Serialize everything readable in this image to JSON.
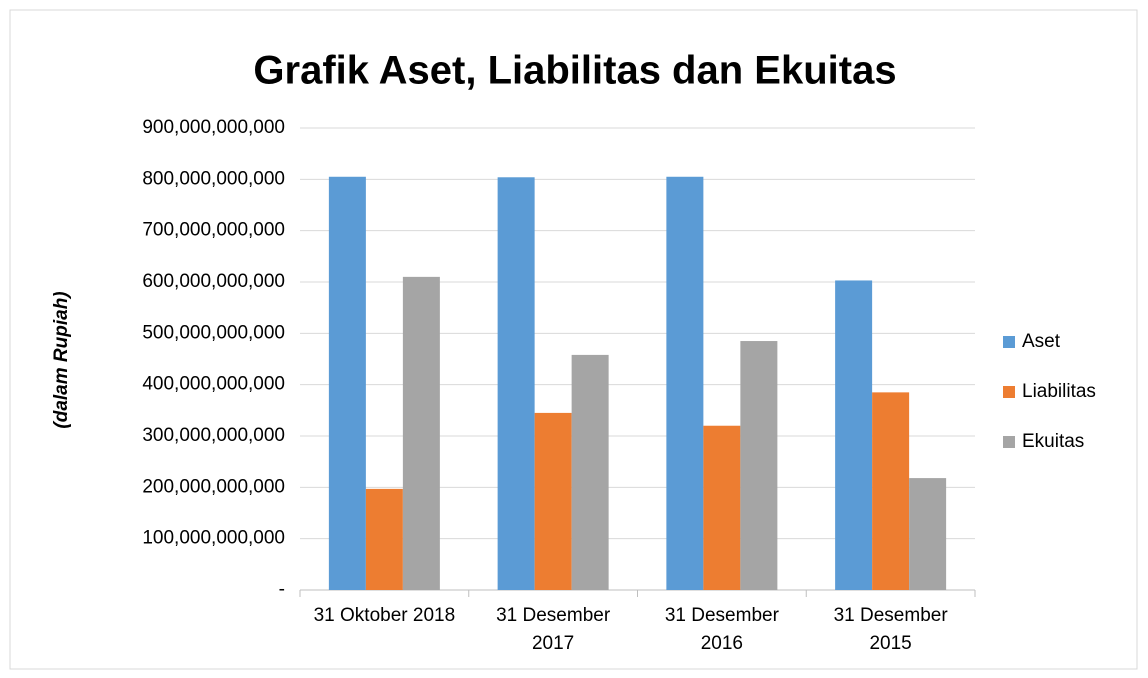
{
  "chart_data": {
    "type": "bar",
    "title": "Grafik Aset, Liabilitas dan Ekuitas",
    "y_label": "(dalam Rupiah)",
    "categories": [
      "31 Oktober 2018",
      "31 Desember 2017",
      "31 Desember 2016",
      "31 Desember 2015"
    ],
    "series": [
      {
        "name": "Aset",
        "color": "#5b9bd5",
        "values": [
          805000000000,
          804000000000,
          805000000000,
          603000000000
        ]
      },
      {
        "name": "Liabilitas",
        "color": "#ed7d31",
        "values": [
          197000000000,
          345000000000,
          320000000000,
          385000000000
        ]
      },
      {
        "name": "Ekuitas",
        "color": "#a5a5a5",
        "values": [
          610000000000,
          458000000000,
          485000000000,
          218000000000
        ]
      }
    ],
    "ylim": [
      0,
      900000000000
    ],
    "yticks": [
      {
        "value": 0,
        "label": "-"
      },
      {
        "value": 100000000000,
        "label": "100,000,000,000"
      },
      {
        "value": 200000000000,
        "label": "200,000,000,000"
      },
      {
        "value": 300000000000,
        "label": "300,000,000,000"
      },
      {
        "value": 400000000000,
        "label": "400,000,000,000"
      },
      {
        "value": 500000000000,
        "label": "500,000,000,000"
      },
      {
        "value": 600000000000,
        "label": "600,000,000,000"
      },
      {
        "value": 700000000000,
        "label": "700,000,000,000"
      },
      {
        "value": 800000000000,
        "label": "800,000,000,000"
      },
      {
        "value": 900000000000,
        "label": "900,000,000,000"
      }
    ],
    "grid": true,
    "legend": "right"
  }
}
